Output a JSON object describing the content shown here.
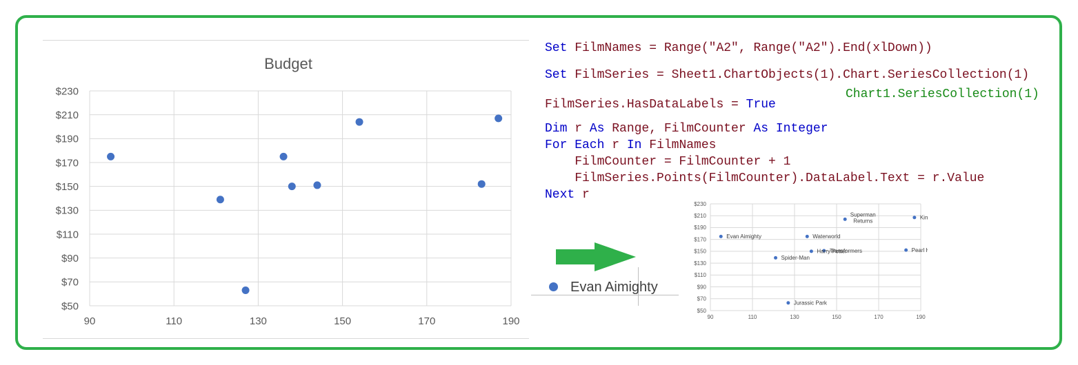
{
  "chart_data": [
    {
      "type": "scatter",
      "title": "Budget",
      "xlim": [
        90,
        190
      ],
      "ylim": [
        50,
        230
      ],
      "xticks": [
        "90",
        "110",
        "130",
        "150",
        "170",
        "190"
      ],
      "yticks": [
        "$50",
        "$70",
        "$90",
        "$110",
        "$130",
        "$150",
        "$170",
        "$190",
        "$210",
        "$230"
      ],
      "xtick_values": [
        90,
        110,
        130,
        150,
        170,
        190
      ],
      "ytick_values": [
        50,
        70,
        90,
        110,
        130,
        150,
        170,
        190,
        210,
        230
      ],
      "grid": true,
      "points": [
        {
          "x": 95,
          "y": 175
        },
        {
          "x": 121,
          "y": 139
        },
        {
          "x": 127,
          "y": 63
        },
        {
          "x": 136,
          "y": 175
        },
        {
          "x": 138,
          "y": 150
        },
        {
          "x": 144,
          "y": 151
        },
        {
          "x": 154,
          "y": 204
        },
        {
          "x": 183,
          "y": 152
        },
        {
          "x": 187,
          "y": 207
        }
      ]
    },
    {
      "type": "scatter",
      "xlim": [
        90,
        190
      ],
      "ylim": [
        50,
        230
      ],
      "xticks": [
        "90",
        "110",
        "130",
        "150",
        "170",
        "190"
      ],
      "yticks": [
        "$50",
        "$70",
        "$90",
        "$110",
        "$130",
        "$150",
        "$170",
        "$190",
        "$210",
        "$230"
      ],
      "xtick_values": [
        90,
        110,
        130,
        150,
        170,
        190
      ],
      "ytick_values": [
        50,
        70,
        90,
        110,
        130,
        150,
        170,
        190,
        210,
        230
      ],
      "grid": true,
      "points": [
        {
          "x": 95,
          "y": 175,
          "label": "Evan Aimighty"
        },
        {
          "x": 121,
          "y": 139,
          "label": "Spider-Man"
        },
        {
          "x": 127,
          "y": 63,
          "label": "Jurassic Park"
        },
        {
          "x": 136,
          "y": 175,
          "label": "Waterworld"
        },
        {
          "x": 138,
          "y": 150,
          "label": "Harry Potter"
        },
        {
          "x": 144,
          "y": 151,
          "label": "Transformers"
        },
        {
          "x": 154,
          "y": 204,
          "label": "Superman Returns"
        },
        {
          "x": 183,
          "y": 152,
          "label": "Pearl Harbor"
        },
        {
          "x": 187,
          "y": 207,
          "label": "King Kong"
        }
      ]
    }
  ],
  "code": {
    "line1": {
      "kw": "Set",
      "rest": " FilmNames = Range(\"A2\", Range(\"A2\").End(xlDown))"
    },
    "line2": {
      "kw": "Set",
      "rest": " FilmSeries = Sheet1.ChartObjects(1).Chart.SeriesCollection(1)"
    },
    "comment": "Chart1.SeriesCollection(1)",
    "line3": {
      "pre": "FilmSeries.HasDataLabels = ",
      "kw": "True"
    },
    "line4": {
      "kw1": "Dim",
      "a": " r ",
      "kw2": "As",
      "b": " Range, FilmCounter ",
      "kw3": "As",
      "kw4": " Integer"
    },
    "line5": {
      "kw1": "For Each",
      "a": " r ",
      "kw2": "In",
      "b": " FilmNames"
    },
    "line6": "    FilmCounter = FilmCounter + 1",
    "line7": "    FilmSeries.Points(FilmCounter).DataLabel.Text = r.Value",
    "line8": {
      "kw": "Next",
      "rest": " r"
    }
  },
  "label_demo": {
    "text": "Evan Aimighty"
  },
  "colors": {
    "border": "#2fb04a",
    "marker": "#4472c4",
    "arrow": "#2fb04a",
    "keyword": "#0000c8",
    "ident": "#7a1020",
    "comment": "#178a17"
  }
}
